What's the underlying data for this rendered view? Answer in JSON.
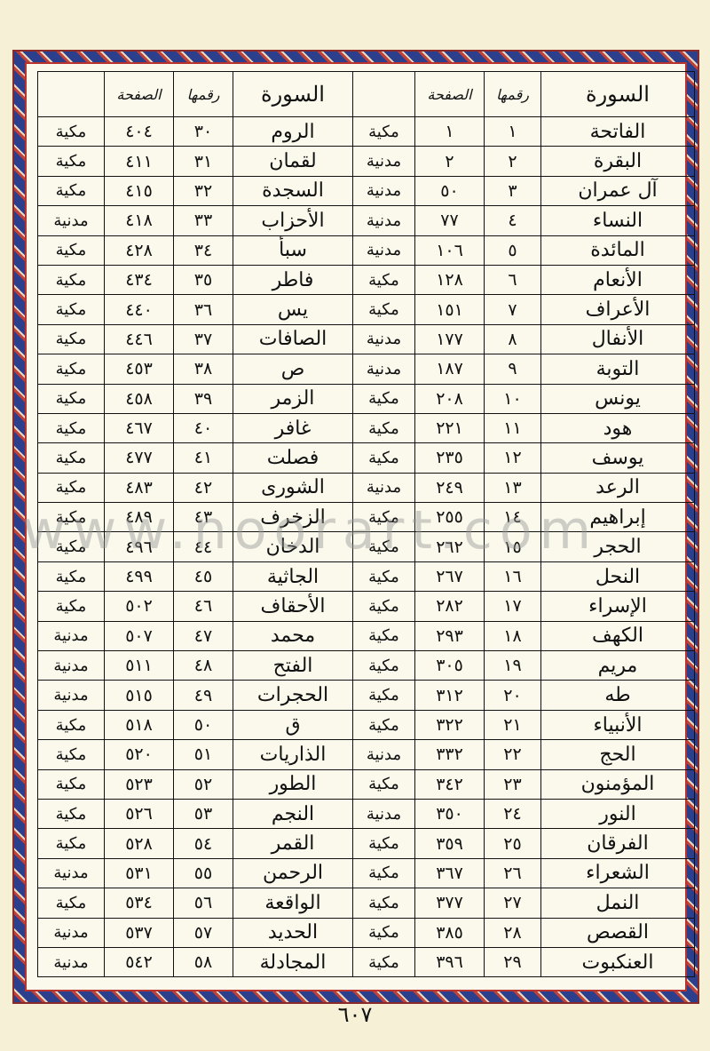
{
  "headers": {
    "surah": "السورة",
    "number": "رقمها",
    "page": "الصفحة",
    "type": ""
  },
  "rows": [
    {
      "r": {
        "name": "الفاتحة",
        "num": "١",
        "page": "١",
        "type": "مكية"
      },
      "l": {
        "name": "الروم",
        "num": "٣٠",
        "page": "٤٠٤",
        "type": "مكية"
      }
    },
    {
      "r": {
        "name": "البقرة",
        "num": "٢",
        "page": "٢",
        "type": "مدنية"
      },
      "l": {
        "name": "لقمان",
        "num": "٣١",
        "page": "٤١١",
        "type": "مكية"
      }
    },
    {
      "r": {
        "name": "آل عمران",
        "num": "٣",
        "page": "٥٠",
        "type": "مدنية"
      },
      "l": {
        "name": "السجدة",
        "num": "٣٢",
        "page": "٤١٥",
        "type": "مكية"
      }
    },
    {
      "r": {
        "name": "النساء",
        "num": "٤",
        "page": "٧٧",
        "type": "مدنية"
      },
      "l": {
        "name": "الأحزاب",
        "num": "٣٣",
        "page": "٤١٨",
        "type": "مدنية"
      }
    },
    {
      "r": {
        "name": "المائدة",
        "num": "٥",
        "page": "١٠٦",
        "type": "مدنية"
      },
      "l": {
        "name": "سبأ",
        "num": "٣٤",
        "page": "٤٢٨",
        "type": "مكية"
      }
    },
    {
      "r": {
        "name": "الأنعام",
        "num": "٦",
        "page": "١٢٨",
        "type": "مكية"
      },
      "l": {
        "name": "فاطر",
        "num": "٣٥",
        "page": "٤٣٤",
        "type": "مكية"
      }
    },
    {
      "r": {
        "name": "الأعراف",
        "num": "٧",
        "page": "١٥١",
        "type": "مكية"
      },
      "l": {
        "name": "يس",
        "num": "٣٦",
        "page": "٤٤٠",
        "type": "مكية"
      }
    },
    {
      "r": {
        "name": "الأنفال",
        "num": "٨",
        "page": "١٧٧",
        "type": "مدنية"
      },
      "l": {
        "name": "الصافات",
        "num": "٣٧",
        "page": "٤٤٦",
        "type": "مكية"
      }
    },
    {
      "r": {
        "name": "التوبة",
        "num": "٩",
        "page": "١٨٧",
        "type": "مدنية"
      },
      "l": {
        "name": "ص",
        "num": "٣٨",
        "page": "٤٥٣",
        "type": "مكية"
      }
    },
    {
      "r": {
        "name": "يونس",
        "num": "١٠",
        "page": "٢٠٨",
        "type": "مكية"
      },
      "l": {
        "name": "الزمر",
        "num": "٣٩",
        "page": "٤٥٨",
        "type": "مكية"
      }
    },
    {
      "r": {
        "name": "هود",
        "num": "١١",
        "page": "٢٢١",
        "type": "مكية"
      },
      "l": {
        "name": "غافر",
        "num": "٤٠",
        "page": "٤٦٧",
        "type": "مكية"
      }
    },
    {
      "r": {
        "name": "يوسف",
        "num": "١٢",
        "page": "٢٣٥",
        "type": "مكية"
      },
      "l": {
        "name": "فصلت",
        "num": "٤١",
        "page": "٤٧٧",
        "type": "مكية"
      }
    },
    {
      "r": {
        "name": "الرعد",
        "num": "١٣",
        "page": "٢٤٩",
        "type": "مدنية"
      },
      "l": {
        "name": "الشورى",
        "num": "٤٢",
        "page": "٤٨٣",
        "type": "مكية"
      }
    },
    {
      "r": {
        "name": "إبراهيم",
        "num": "١٤",
        "page": "٢٥٥",
        "type": "مكية"
      },
      "l": {
        "name": "الزخرف",
        "num": "٤٣",
        "page": "٤٨٩",
        "type": "مكية"
      }
    },
    {
      "r": {
        "name": "الحجر",
        "num": "١٥",
        "page": "٢٦٢",
        "type": "مكية"
      },
      "l": {
        "name": "الدخان",
        "num": "٤٤",
        "page": "٤٩٦",
        "type": "مكية"
      }
    },
    {
      "r": {
        "name": "النحل",
        "num": "١٦",
        "page": "٢٦٧",
        "type": "مكية"
      },
      "l": {
        "name": "الجاثية",
        "num": "٤٥",
        "page": "٤٩٩",
        "type": "مكية"
      }
    },
    {
      "r": {
        "name": "الإسراء",
        "num": "١٧",
        "page": "٢٨٢",
        "type": "مكية"
      },
      "l": {
        "name": "الأحقاف",
        "num": "٤٦",
        "page": "٥٠٢",
        "type": "مكية"
      }
    },
    {
      "r": {
        "name": "الكهف",
        "num": "١٨",
        "page": "٢٩٣",
        "type": "مكية"
      },
      "l": {
        "name": "محمد",
        "num": "٤٧",
        "page": "٥٠٧",
        "type": "مدنية"
      }
    },
    {
      "r": {
        "name": "مريم",
        "num": "١٩",
        "page": "٣٠٥",
        "type": "مكية"
      },
      "l": {
        "name": "الفتح",
        "num": "٤٨",
        "page": "٥١١",
        "type": "مدنية"
      }
    },
    {
      "r": {
        "name": "طه",
        "num": "٢٠",
        "page": "٣١٢",
        "type": "مكية"
      },
      "l": {
        "name": "الحجرات",
        "num": "٤٩",
        "page": "٥١٥",
        "type": "مدنية"
      }
    },
    {
      "r": {
        "name": "الأنبياء",
        "num": "٢١",
        "page": "٣٢٢",
        "type": "مكية"
      },
      "l": {
        "name": "ق",
        "num": "٥٠",
        "page": "٥١٨",
        "type": "مكية"
      }
    },
    {
      "r": {
        "name": "الحج",
        "num": "٢٢",
        "page": "٣٣٢",
        "type": "مدنية"
      },
      "l": {
        "name": "الذاريات",
        "num": "٥١",
        "page": "٥٢٠",
        "type": "مكية"
      }
    },
    {
      "r": {
        "name": "المؤمنون",
        "num": "٢٣",
        "page": "٣٤٢",
        "type": "مكية"
      },
      "l": {
        "name": "الطور",
        "num": "٥٢",
        "page": "٥٢٣",
        "type": "مكية"
      }
    },
    {
      "r": {
        "name": "النور",
        "num": "٢٤",
        "page": "٣٥٠",
        "type": "مدنية"
      },
      "l": {
        "name": "النجم",
        "num": "٥٣",
        "page": "٥٢٦",
        "type": "مكية"
      }
    },
    {
      "r": {
        "name": "الفرقان",
        "num": "٢٥",
        "page": "٣٥٩",
        "type": "مكية"
      },
      "l": {
        "name": "القمر",
        "num": "٥٤",
        "page": "٥٢٨",
        "type": "مكية"
      }
    },
    {
      "r": {
        "name": "الشعراء",
        "num": "٢٦",
        "page": "٣٦٧",
        "type": "مكية"
      },
      "l": {
        "name": "الرحمن",
        "num": "٥٥",
        "page": "٥٣١",
        "type": "مدنية"
      }
    },
    {
      "r": {
        "name": "النمل",
        "num": "٢٧",
        "page": "٣٧٧",
        "type": "مكية"
      },
      "l": {
        "name": "الواقعة",
        "num": "٥٦",
        "page": "٥٣٤",
        "type": "مكية"
      }
    },
    {
      "r": {
        "name": "القصص",
        "num": "٢٨",
        "page": "٣٨٥",
        "type": "مكية"
      },
      "l": {
        "name": "الحديد",
        "num": "٥٧",
        "page": "٥٣٧",
        "type": "مدنية"
      }
    },
    {
      "r": {
        "name": "العنكبوت",
        "num": "٢٩",
        "page": "٣٩٦",
        "type": "مكية"
      },
      "l": {
        "name": "المجادلة",
        "num": "٥٨",
        "page": "٥٤٢",
        "type": "مدنية"
      }
    }
  ],
  "page_number": "٦٠٧",
  "watermark": "www.noorart.com",
  "colors": {
    "frame_blue": "#2b3f8c",
    "frame_red": "#c0413a",
    "paper": "#f6f1d6"
  }
}
